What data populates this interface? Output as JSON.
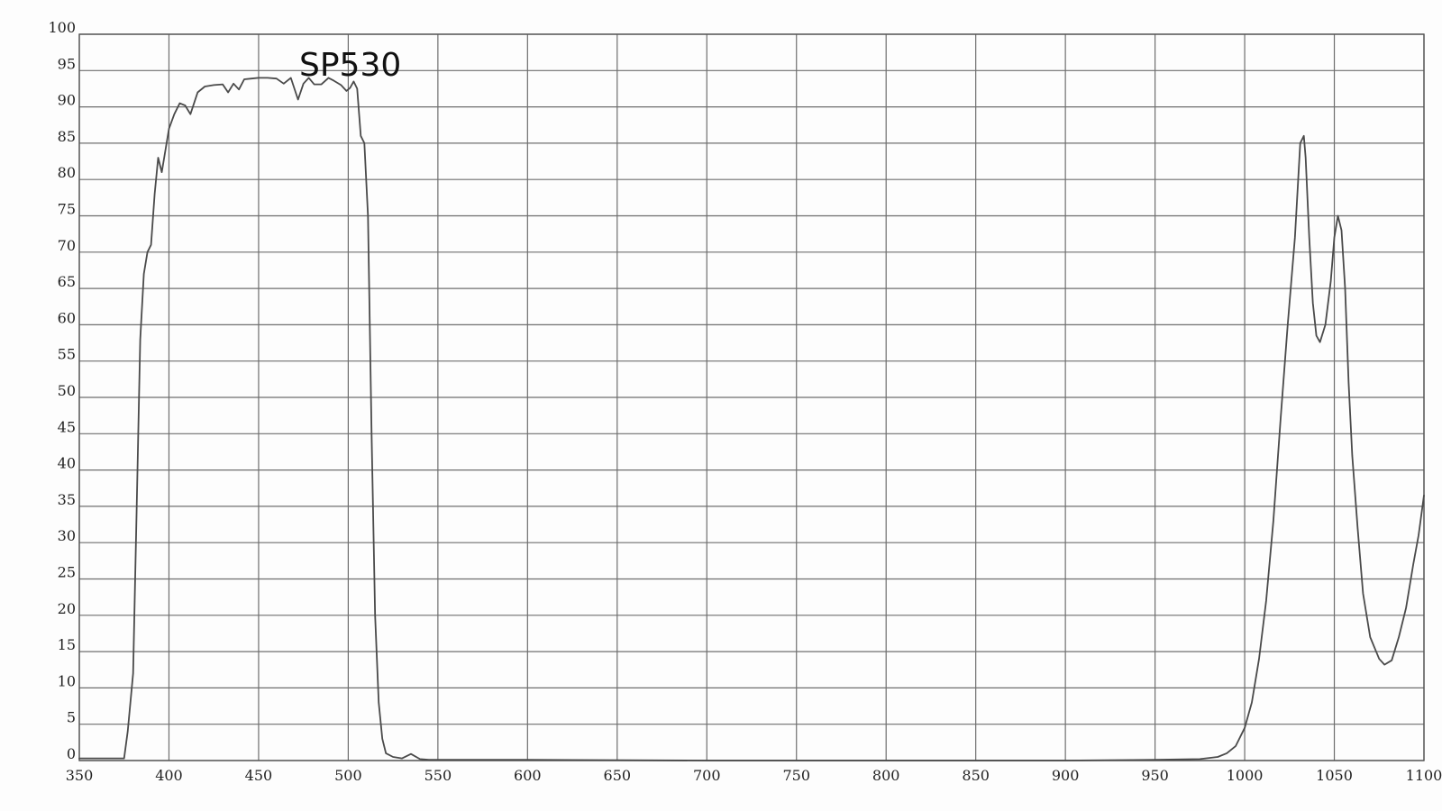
{
  "chart_data": {
    "type": "line",
    "title": "SP530",
    "xlabel": "",
    "ylabel": "",
    "xlim": [
      350,
      1100
    ],
    "ylim": [
      0,
      100
    ],
    "grid": true,
    "x_ticks": [
      350,
      400,
      450,
      500,
      550,
      600,
      650,
      700,
      750,
      800,
      850,
      900,
      950,
      1000,
      1050,
      1100
    ],
    "y_ticks": [
      0,
      5,
      10,
      15,
      20,
      25,
      30,
      35,
      40,
      45,
      50,
      55,
      60,
      65,
      70,
      75,
      80,
      85,
      90,
      95,
      100
    ],
    "series": [
      {
        "color": "#4a4a4a",
        "points": [
          [
            350,
            0.3
          ],
          [
            375,
            0.3
          ],
          [
            377,
            4
          ],
          [
            380,
            12
          ],
          [
            382,
            35
          ],
          [
            384,
            58
          ],
          [
            386,
            67
          ],
          [
            388,
            70
          ],
          [
            390,
            71
          ],
          [
            392,
            78
          ],
          [
            394,
            83
          ],
          [
            396,
            81
          ],
          [
            398,
            84
          ],
          [
            400,
            87
          ],
          [
            403,
            89
          ],
          [
            406,
            90.5
          ],
          [
            409,
            90.2
          ],
          [
            412,
            89
          ],
          [
            416,
            92
          ],
          [
            420,
            92.8
          ],
          [
            425,
            93
          ],
          [
            430,
            93.1
          ],
          [
            433,
            92
          ],
          [
            436,
            93.2
          ],
          [
            439,
            92.4
          ],
          [
            442,
            93.8
          ],
          [
            446,
            93.9
          ],
          [
            450,
            94
          ],
          [
            455,
            94
          ],
          [
            460,
            93.9
          ],
          [
            464,
            93.2
          ],
          [
            468,
            94
          ],
          [
            472,
            91
          ],
          [
            475,
            93.2
          ],
          [
            478,
            94
          ],
          [
            481,
            93.1
          ],
          [
            485,
            93.1
          ],
          [
            489,
            94
          ],
          [
            492,
            93.6
          ],
          [
            496,
            93
          ],
          [
            499,
            92.2
          ],
          [
            501,
            92.6
          ],
          [
            503,
            93.5
          ],
          [
            505,
            92.5
          ],
          [
            507,
            86
          ],
          [
            509,
            85
          ],
          [
            511,
            75
          ],
          [
            513,
            45
          ],
          [
            515,
            20
          ],
          [
            517,
            8
          ],
          [
            519,
            3
          ],
          [
            521,
            1
          ],
          [
            525,
            0.5
          ],
          [
            530,
            0.3
          ],
          [
            535,
            0.9
          ],
          [
            540,
            0.2
          ],
          [
            545,
            0.1
          ],
          [
            550,
            0.1
          ],
          [
            600,
            0.1
          ],
          [
            700,
            0
          ],
          [
            800,
            0
          ],
          [
            900,
            0
          ],
          [
            950,
            0.1
          ],
          [
            975,
            0.2
          ],
          [
            985,
            0.5
          ],
          [
            990,
            1
          ],
          [
            995,
            2
          ],
          [
            1000,
            4.5
          ],
          [
            1004,
            8
          ],
          [
            1008,
            14
          ],
          [
            1012,
            22
          ],
          [
            1016,
            33
          ],
          [
            1020,
            47
          ],
          [
            1024,
            60
          ],
          [
            1028,
            72
          ],
          [
            1031,
            85
          ],
          [
            1033,
            86
          ],
          [
            1034,
            83
          ],
          [
            1036,
            72
          ],
          [
            1038,
            63
          ],
          [
            1040,
            58.5
          ],
          [
            1042,
            57.6
          ],
          [
            1045,
            60
          ],
          [
            1048,
            66
          ],
          [
            1050,
            72
          ],
          [
            1052,
            75
          ],
          [
            1054,
            73
          ],
          [
            1056,
            65
          ],
          [
            1058,
            52
          ],
          [
            1060,
            42
          ],
          [
            1063,
            32
          ],
          [
            1066,
            23
          ],
          [
            1070,
            17
          ],
          [
            1075,
            14
          ],
          [
            1078,
            13.2
          ],
          [
            1082,
            13.8
          ],
          [
            1086,
            17
          ],
          [
            1090,
            21
          ],
          [
            1094,
            27
          ],
          [
            1097,
            31
          ],
          [
            1100,
            36.5
          ]
        ]
      }
    ]
  }
}
